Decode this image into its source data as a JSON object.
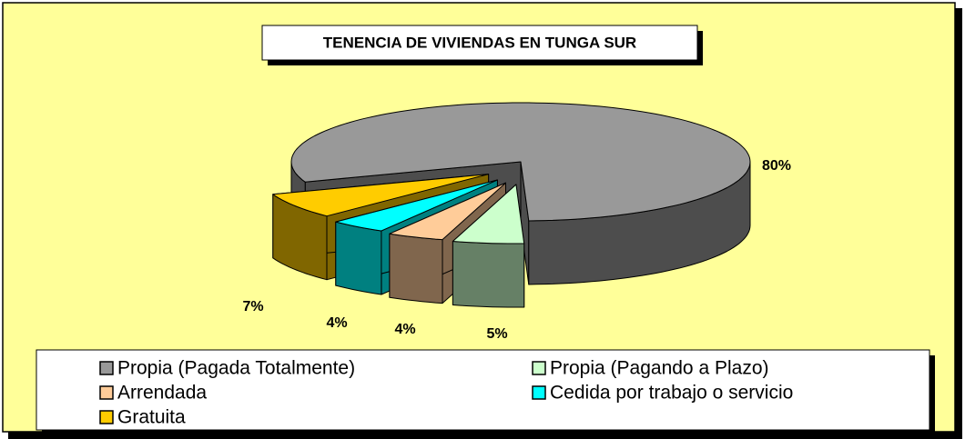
{
  "chart_data": {
    "type": "pie",
    "title": "TENENCIA DE VIVIENDAS EN TUNGA SUR",
    "categories": [
      "Propia (Pagada Totalmente)",
      "Propia (Pagando a Plazo)",
      "Arrendada",
      "Cedida por trabajo o servicio",
      "Gratuita"
    ],
    "values": [
      80,
      5,
      4,
      4,
      7
    ],
    "value_labels": [
      "80%",
      "5%",
      "4%",
      "4%",
      "7%"
    ],
    "colors": [
      "#999999",
      "#ccffcc",
      "#ffcc99",
      "#00ffff",
      "#ffcc00"
    ],
    "legend": "bottom"
  }
}
